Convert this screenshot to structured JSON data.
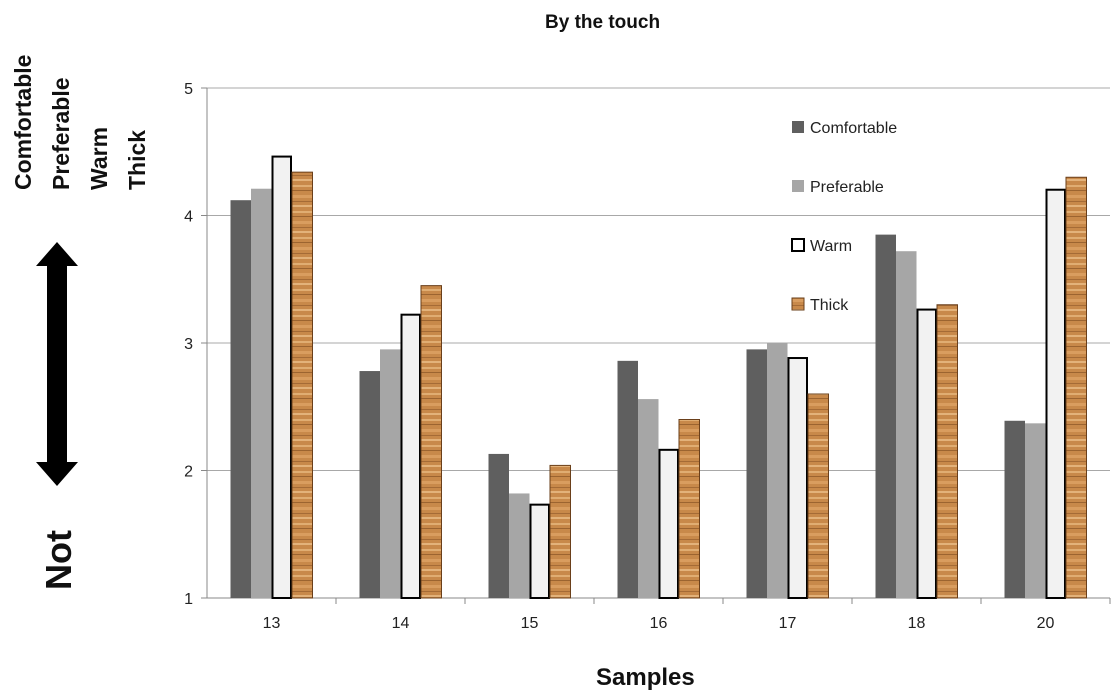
{
  "chart_data": {
    "type": "bar",
    "title": "By the touch",
    "xlabel": "Samples",
    "ylabel_top": [
      "Comfortable",
      "Preferable",
      "Warm",
      "Thick"
    ],
    "ylabel_bottom": "Not",
    "categories": [
      "13",
      "14",
      "15",
      "16",
      "17",
      "18",
      "20"
    ],
    "ylim": [
      1,
      5
    ],
    "yticks": [
      "1",
      "2",
      "3",
      "4",
      "5"
    ],
    "grid": true,
    "legend_position": "top-right",
    "series": [
      {
        "name": "Comfortable",
        "color": "#5f5f5f",
        "values": [
          4.12,
          2.78,
          2.13,
          2.86,
          2.95,
          3.85,
          2.39
        ]
      },
      {
        "name": "Preferable",
        "color": "#a6a6a6",
        "values": [
          4.21,
          2.95,
          1.82,
          2.56,
          3.0,
          3.72,
          2.37
        ]
      },
      {
        "name": "Warm",
        "color": "#f2f2f2",
        "values": [
          4.47,
          3.23,
          1.74,
          2.17,
          2.89,
          3.27,
          4.21
        ]
      },
      {
        "name": "Thick",
        "color": "#c8894a",
        "values": [
          4.34,
          3.45,
          2.04,
          2.4,
          2.6,
          3.3,
          4.3
        ]
      }
    ]
  }
}
